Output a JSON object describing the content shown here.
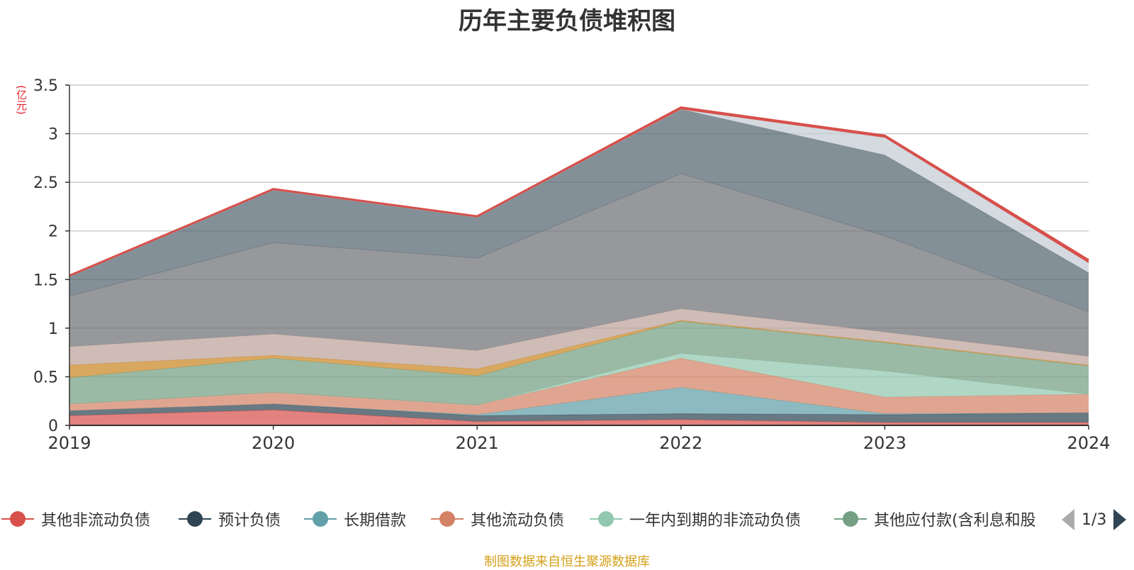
{
  "chart_data": {
    "type": "area",
    "stacked": true,
    "title": "历年主要负债堆积图",
    "unit_label": "(亿元)",
    "x": [
      "2019",
      "2020",
      "2021",
      "2022",
      "2023",
      "2024"
    ],
    "ylim": [
      0,
      3.5
    ],
    "yticks": [
      "0",
      "0.5",
      "1",
      "1.5",
      "2",
      "2.5",
      "3",
      "3.5"
    ],
    "grid": true,
    "legend_position": "bottom",
    "series": [
      {
        "name": "其他非流动负债",
        "color": "#d7504b",
        "values": [
          0.1,
          0.16,
          0.04,
          0.06,
          0.03,
          0.03
        ]
      },
      {
        "name": "预计负债",
        "color": "#2f4553",
        "values": [
          0.05,
          0.06,
          0.06,
          0.06,
          0.08,
          0.1
        ]
      },
      {
        "name": "长期借款",
        "color": "#61a0a8",
        "values": [
          0.0,
          0.0,
          0.01,
          0.27,
          0.01,
          0.0
        ]
      },
      {
        "name": "其他流动负债",
        "color": "#d48265",
        "values": [
          0.07,
          0.12,
          0.1,
          0.3,
          0.17,
          0.19
        ]
      },
      {
        "name": "一年内到期的非流动负债",
        "color": "#91c7ae",
        "values": [
          0.0,
          0.0,
          0.0,
          0.05,
          0.27,
          0.0
        ]
      },
      {
        "name": "其他应付款(含利息和股",
        "color": "#749f83",
        "values": [
          0.27,
          0.35,
          0.3,
          0.33,
          0.29,
          0.29
        ]
      },
      {
        "name": "",
        "color": "#ca8622",
        "values": [
          0.13,
          0.03,
          0.07,
          0.01,
          0.01,
          0.01
        ]
      },
      {
        "name": "",
        "color": "#bda29a",
        "values": [
          0.19,
          0.22,
          0.19,
          0.12,
          0.1,
          0.09
        ]
      },
      {
        "name": "",
        "color": "#6e7074",
        "values": [
          0.52,
          0.94,
          0.95,
          1.39,
          0.99,
          0.46
        ]
      },
      {
        "name": "",
        "color": "#546570",
        "values": [
          0.2,
          0.54,
          0.42,
          0.66,
          0.83,
          0.4
        ]
      },
      {
        "name": "",
        "color": "#c4ccd3",
        "values": [
          0.0,
          0.0,
          0.0,
          0.0,
          0.18,
          0.1
        ]
      },
      {
        "name": "",
        "color": "#d7504b",
        "values": [
          0.01,
          0.01,
          0.01,
          0.02,
          0.02,
          0.03
        ]
      }
    ]
  },
  "legend": {
    "page_indicator": "1/3"
  },
  "footer": {
    "source": "制图数据来自恒生聚源数据库"
  }
}
